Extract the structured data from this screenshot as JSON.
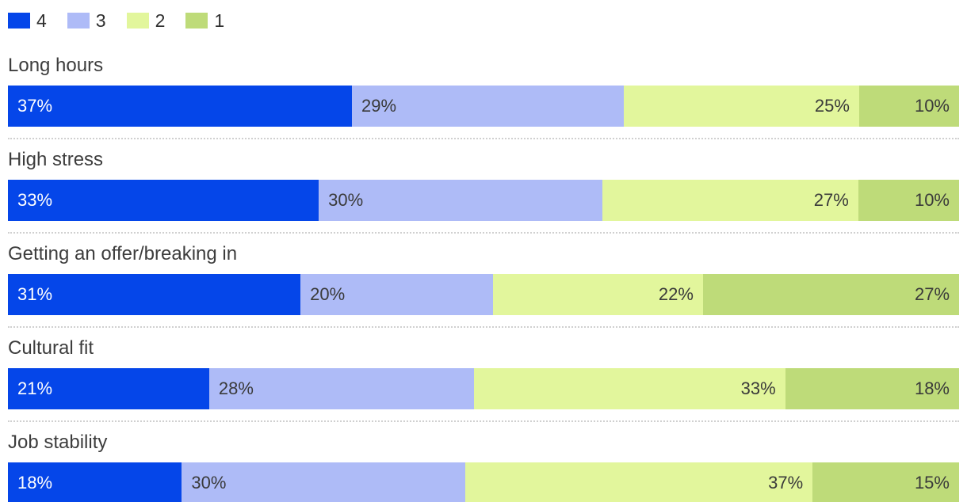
{
  "chart_data": {
    "type": "bar",
    "stacked": true,
    "orientation": "horizontal",
    "grid": false,
    "legend_position": "top-left",
    "value_suffix": "%",
    "categories": [
      "Long hours",
      "High stress",
      "Getting an offer/breaking in",
      "Cultural fit",
      "Job stability"
    ],
    "series": [
      {
        "name": "4",
        "color": "#0546e9",
        "text_color": "#ffffff",
        "label_align": "left",
        "values": [
          37,
          33,
          31,
          21,
          18
        ]
      },
      {
        "name": "3",
        "color": "#aebbf7",
        "text_color": "#3a3a3a",
        "label_align": "left",
        "values": [
          29,
          30,
          20,
          28,
          30
        ]
      },
      {
        "name": "2",
        "color": "#e2f69c",
        "text_color": "#3a3a3a",
        "label_align": "right",
        "values": [
          25,
          27,
          22,
          33,
          37
        ]
      },
      {
        "name": "1",
        "color": "#bedb79",
        "text_color": "#3a3a3a",
        "label_align": "right",
        "values": [
          10,
          10,
          27,
          18,
          15
        ]
      }
    ]
  },
  "styles": {
    "background": "#ffffff",
    "separator_color": "#d0d0d0",
    "category_label_color": "#3d3d3d",
    "legend_label_color": "#2f2f2f"
  }
}
